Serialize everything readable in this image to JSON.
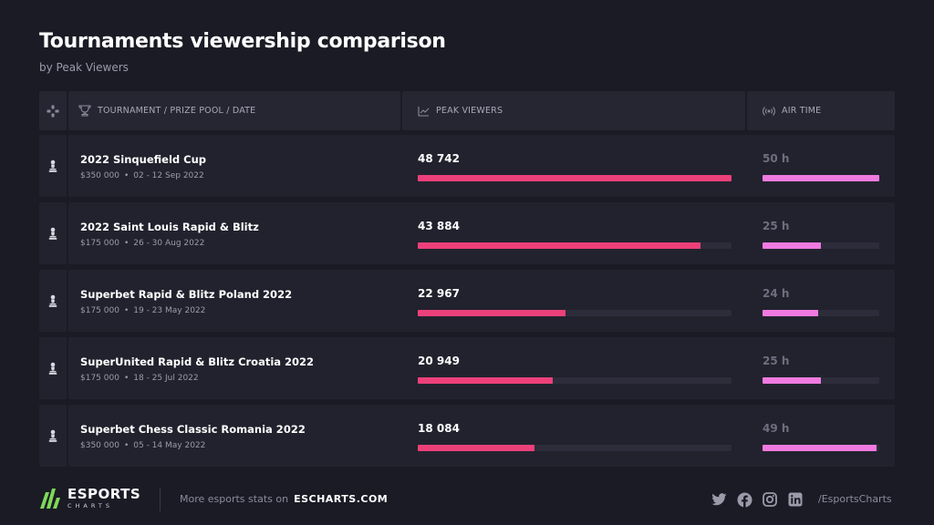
{
  "title": "Tournaments viewership comparison",
  "subtitle": "by Peak Viewers",
  "header": {
    "col_tournament": "TOURNAMENT / PRIZE POOL / DATE",
    "col_peak": "PEAK VIEWERS",
    "col_air": "AIR TIME"
  },
  "rows": [
    {
      "name": "2022 Sinquefield Cup",
      "prize": "$350 000",
      "date": "02 - 12 Sep 2022",
      "peak_label": "48 742",
      "air_label": "50 h"
    },
    {
      "name": "2022 Saint Louis Rapid & Blitz",
      "prize": "$175 000",
      "date": "26 - 30 Aug 2022",
      "peak_label": "43 884",
      "air_label": "25 h"
    },
    {
      "name": "Superbet Rapid & Blitz Poland 2022",
      "prize": "$175 000",
      "date": "19 - 23 May 2022",
      "peak_label": "22 967",
      "air_label": "24 h"
    },
    {
      "name": "SuperUnited Rapid & Blitz Croatia 2022",
      "prize": "$175 000",
      "date": "18 - 25 Jul 2022",
      "peak_label": "20 949",
      "air_label": "25 h"
    },
    {
      "name": "Superbet Chess Classic Romania 2022",
      "prize": "$350 000",
      "date": "05 - 14 May 2022",
      "peak_label": "18 084",
      "air_label": "49 h"
    }
  ],
  "chart_data": {
    "type": "bar",
    "title": "Tournaments viewership comparison",
    "subtitle": "by Peak Viewers",
    "categories": [
      "2022 Sinquefield Cup",
      "2022 Saint Louis Rapid & Blitz",
      "Superbet Rapid & Blitz Poland 2022",
      "SuperUnited Rapid & Blitz Croatia 2022",
      "Superbet Chess Classic Romania 2022"
    ],
    "series": [
      {
        "name": "PEAK VIEWERS",
        "values": [
          48742,
          43884,
          22967,
          20949,
          18084
        ],
        "color": "#ec407a"
      },
      {
        "name": "AIR TIME",
        "values": [
          50,
          25,
          24,
          25,
          49
        ],
        "color": "#f07ae0"
      }
    ],
    "orientation": "horizontal"
  },
  "footer": {
    "logo_main": "ESPORTS",
    "logo_sub": "CHARTS",
    "more_text": "More esports stats on",
    "site": "ESCHARTS.COM",
    "handle": "/EsportsCharts"
  },
  "colors": {
    "background": "#1b1b26",
    "peak_bar": "#ec407a",
    "air_bar": "#f07ae0",
    "logo_green": "#7ed957"
  }
}
